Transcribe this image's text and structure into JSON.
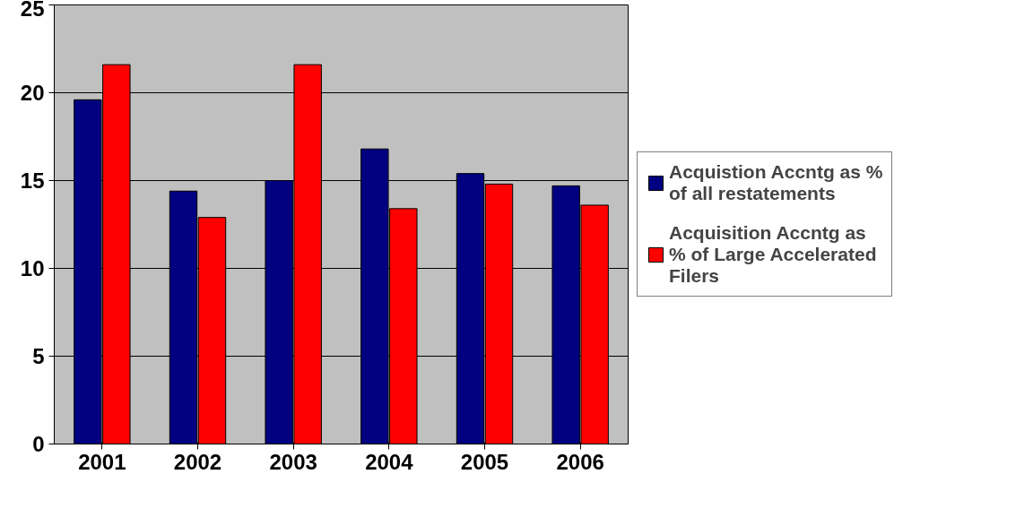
{
  "chart_data": {
    "type": "bar",
    "categories": [
      "2001",
      "2002",
      "2003",
      "2004",
      "2005",
      "2006"
    ],
    "series": [
      {
        "name": "Acquistion Accntg as % of all restatements",
        "color": "#000080",
        "values": [
          19.6,
          14.4,
          15.0,
          16.8,
          15.4,
          14.7
        ]
      },
      {
        "name": "Acquisition Accntg as % of Large Accelerated Filers",
        "color": "#ff0000",
        "values": [
          21.6,
          12.9,
          21.6,
          13.4,
          14.8,
          13.6
        ]
      }
    ],
    "ylim": [
      0,
      25
    ],
    "yticks": [
      0,
      5,
      10,
      15,
      20,
      25
    ],
    "grid": "y",
    "legend": "right"
  }
}
